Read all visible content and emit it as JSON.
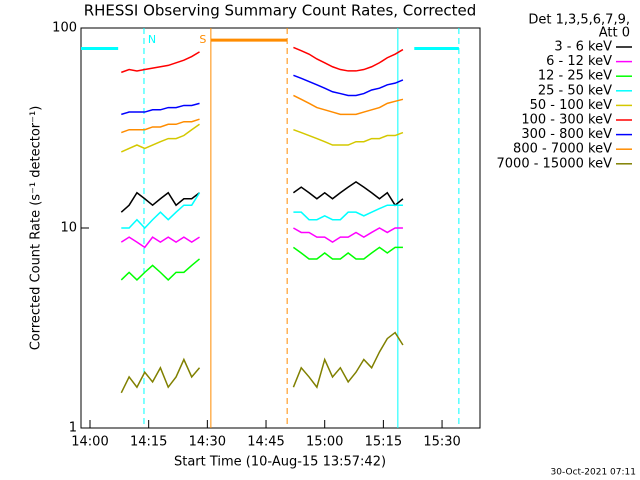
{
  "chart_data": {
    "type": "line",
    "title": "RHESSI Observing Summary Count Rates, Corrected",
    "xlabel": "Start Time (10-Aug-15 13:57:42)",
    "ylabel": "Corrected Count Rate (s⁻¹ detector⁻¹)",
    "legend_title": [
      "Det 1,3,5,6,7,9,",
      "Att 0"
    ],
    "footer": "30-Oct-2021 07:11",
    "log_y": true,
    "xlim": [
      "13:57:42",
      "15:39:42"
    ],
    "xticks": [
      "14:00",
      "14:15",
      "14:30",
      "14:45",
      "15:00",
      "15:15",
      "15:30"
    ],
    "ylim": [
      1,
      100
    ],
    "yticks": [
      1,
      10,
      100
    ],
    "x": [
      "14:08",
      "14:10",
      "14:12",
      "14:14",
      "14:16",
      "14:18",
      "14:20",
      "14:22",
      "14:24",
      "14:26",
      "14:28",
      "14:40",
      "14:52",
      "14:54",
      "14:56",
      "14:58",
      "15:00",
      "15:02",
      "15:04",
      "15:06",
      "15:08",
      "15:10",
      "15:12",
      "15:14",
      "15:16",
      "15:18",
      "15:20"
    ],
    "series": [
      {
        "name": "3 - 6 keV",
        "color": "#000000",
        "values": [
          12,
          13,
          15,
          14,
          13,
          14,
          15,
          13,
          14,
          14,
          15,
          null,
          15,
          16,
          15,
          14,
          15,
          14,
          15,
          16,
          17,
          16,
          15,
          14,
          15,
          13,
          14
        ]
      },
      {
        "name": "6 - 12 keV",
        "color": "#ff00ff",
        "values": [
          8.5,
          9,
          8.5,
          8,
          9,
          8.5,
          9,
          8.5,
          9,
          8.5,
          9,
          null,
          10,
          9.5,
          9.5,
          9,
          9,
          8.5,
          9,
          9,
          9.5,
          9,
          9.5,
          10,
          9.5,
          10,
          10
        ]
      },
      {
        "name": "12 - 25 keV",
        "color": "#00ff00",
        "values": [
          5.5,
          6,
          5.5,
          6,
          6.5,
          6,
          5.5,
          6,
          6,
          6.5,
          7,
          null,
          8,
          7.5,
          7,
          7,
          7.5,
          7,
          7,
          7.5,
          7,
          7,
          7.5,
          8,
          7.5,
          8,
          8
        ]
      },
      {
        "name": "25 - 50 keV",
        "color": "#00ffff",
        "values": [
          10,
          10,
          11,
          10,
          11,
          12,
          11,
          12,
          13,
          13,
          15,
          null,
          12,
          12,
          11,
          11,
          11.5,
          11,
          11,
          12,
          12,
          11.5,
          12,
          12.5,
          13,
          13,
          13
        ]
      },
      {
        "name": "50 - 100 keV",
        "color": "#d4c800",
        "values": [
          24,
          25,
          26,
          25,
          26,
          27,
          28,
          28,
          29,
          31,
          33,
          null,
          31,
          30,
          29,
          28,
          27,
          26,
          26,
          26,
          27,
          27,
          28,
          28,
          29,
          29,
          30
        ]
      },
      {
        "name": "100 - 300 keV",
        "color": "#ff0000",
        "values": [
          60,
          62,
          61,
          62,
          63,
          64,
          65,
          67,
          69,
          72,
          76,
          null,
          80,
          77,
          74,
          70,
          67,
          64,
          62,
          61,
          61,
          62,
          64,
          67,
          71,
          74,
          78
        ]
      },
      {
        "name": "300 - 800 keV",
        "color": "#0000ff",
        "values": [
          37,
          38,
          38,
          38,
          39,
          39,
          40,
          40,
          41,
          41,
          42,
          null,
          58,
          56,
          54,
          52,
          50,
          48,
          47,
          46,
          46,
          47,
          49,
          50,
          52,
          53,
          55
        ]
      },
      {
        "name": "800 - 7000 keV",
        "color": "#ff8c00",
        "values": [
          30,
          31,
          31,
          31,
          32,
          32,
          33,
          33,
          34,
          34,
          35,
          null,
          46,
          44,
          42,
          40,
          39,
          38,
          37,
          37,
          37,
          38,
          39,
          40,
          42,
          43,
          44
        ]
      },
      {
        "name": "7000 - 15000 keV",
        "color": "#808000",
        "values": [
          1.5,
          1.8,
          1.6,
          1.9,
          1.7,
          2,
          1.6,
          1.8,
          2.2,
          1.8,
          2,
          null,
          1.6,
          2,
          1.8,
          1.6,
          2.2,
          1.8,
          2,
          1.7,
          1.9,
          2.2,
          2,
          2.4,
          2.8,
          3,
          2.6
        ]
      }
    ],
    "markers": [
      {
        "x": "14:13:48",
        "color": "#00ffff",
        "dashed": true,
        "label": "N"
      },
      {
        "x": "14:30:54",
        "color": "#ff8c00",
        "dashed": false,
        "label": "S"
      },
      {
        "x": "14:50:24",
        "color": "#ff8c00",
        "dashed": true
      },
      {
        "x": "15:18:42",
        "color": "#00ffff",
        "dashed": false
      },
      {
        "x": "15:34:18",
        "color": "#00ffff",
        "dashed": true
      }
    ],
    "bands": [
      {
        "start": "13:57:42",
        "end": "14:07:12",
        "level": 79,
        "color": "#00ffff"
      },
      {
        "start": "15:22:54",
        "end": "15:34:18",
        "level": 79,
        "color": "#00ffff"
      },
      {
        "start": "14:30:54",
        "end": "14:50:24",
        "level": 87,
        "color": "#ff8c00"
      }
    ]
  }
}
